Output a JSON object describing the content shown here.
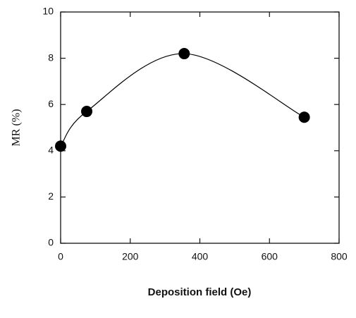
{
  "chart_data": {
    "type": "scatter",
    "x_label": "Deposition field (Oe)",
    "y_label": "MR (%)",
    "x": [
      0,
      75,
      355,
      700
    ],
    "values": [
      4.2,
      5.7,
      8.2,
      5.45
    ],
    "color": "#000000",
    "smooth_line": true,
    "xlim": [
      0,
      800
    ],
    "xticks": [
      0,
      200,
      400,
      600,
      800
    ],
    "ylim": [
      0,
      10
    ],
    "yticks": [
      0,
      2,
      4,
      6,
      8,
      10
    ]
  }
}
